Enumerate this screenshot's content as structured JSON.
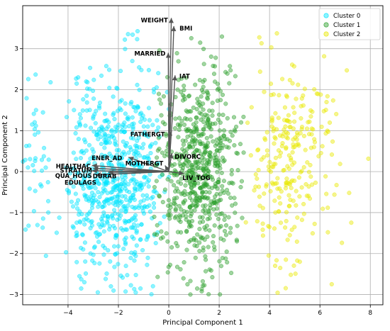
{
  "chart_data": {
    "type": "scatter",
    "title": "",
    "xlabel": "Principal Component 1",
    "ylabel": "Principal Component 2",
    "xlim": [
      -5.8,
      8.5
    ],
    "ylim": [
      -3.25,
      4.05
    ],
    "xticks": [
      -4,
      -2,
      0,
      2,
      4,
      6,
      8
    ],
    "yticks": [
      -3,
      -2,
      -1,
      0,
      1,
      2,
      3
    ],
    "grid": true,
    "legend_position": "top-right",
    "series": [
      {
        "name": "Cluster 0",
        "color": "#00e5ff",
        "clusters": [
          {
            "cx": -2.6,
            "cy": -0.2,
            "sx": 0.85,
            "sy": 1.15,
            "xmin": -4.1,
            "xmax": -0.3,
            "n": 450
          },
          {
            "cx": -1.4,
            "cy": 0.1,
            "sx": 0.55,
            "sy": 1.25,
            "xmin": -2.6,
            "xmax": 0.1,
            "n": 220
          },
          {
            "cx": -5.2,
            "cy": 0.3,
            "sx": 0.4,
            "sy": 0.9,
            "xmin": -5.8,
            "xmax": -4.3,
            "n": 45
          }
        ]
      },
      {
        "name": "Cluster 1",
        "color": "#2ca02c",
        "clusters": [
          {
            "cx": 1.2,
            "cy": 0.0,
            "sx": 0.75,
            "sy": 1.2,
            "xmin": -0.6,
            "xmax": 3.0,
            "n": 650
          }
        ]
      },
      {
        "name": "Cluster 2",
        "color": "#e8e800",
        "clusters": [
          {
            "cx": 4.8,
            "cy": 0.0,
            "sx": 0.9,
            "sy": 1.25,
            "xmin": 3.0,
            "xmax": 8.0,
            "n": 260
          }
        ]
      }
    ],
    "loadings": [
      {
        "label": "WEIGHT",
        "x": 0.1,
        "y": 3.75
      },
      {
        "label": "BMI",
        "x": 0.2,
        "y": 3.55
      },
      {
        "label": "MARRIED",
        "x": -0.02,
        "y": 2.9
      },
      {
        "label": "IAT",
        "x": 0.25,
        "y": 2.35
      },
      {
        "label": "FATHERGT",
        "x": 0.05,
        "y": 1.0
      },
      {
        "label": "ENER_AD",
        "x": -1.6,
        "y": 0.35
      },
      {
        "label": "DIVORC",
        "x": 0.12,
        "y": 0.45
      },
      {
        "label": "MOTHERGT",
        "x": -0.15,
        "y": 0.15
      },
      {
        "label": "LIV_TOG",
        "x": 0.6,
        "y": -0.05
      },
      {
        "label": "HEALTHAC",
        "x": -3.05,
        "y": 0.15
      },
      {
        "label": "STRATUM",
        "x": -3.0,
        "y": 0.08
      },
      {
        "label": "QUA_HOUS",
        "x": -3.05,
        "y": 0.02
      },
      {
        "label": "EDULAGS",
        "x": -2.9,
        "y": -0.08
      },
      {
        "label": "DURAB",
        "x": -2.4,
        "y": -0.02
      }
    ]
  }
}
